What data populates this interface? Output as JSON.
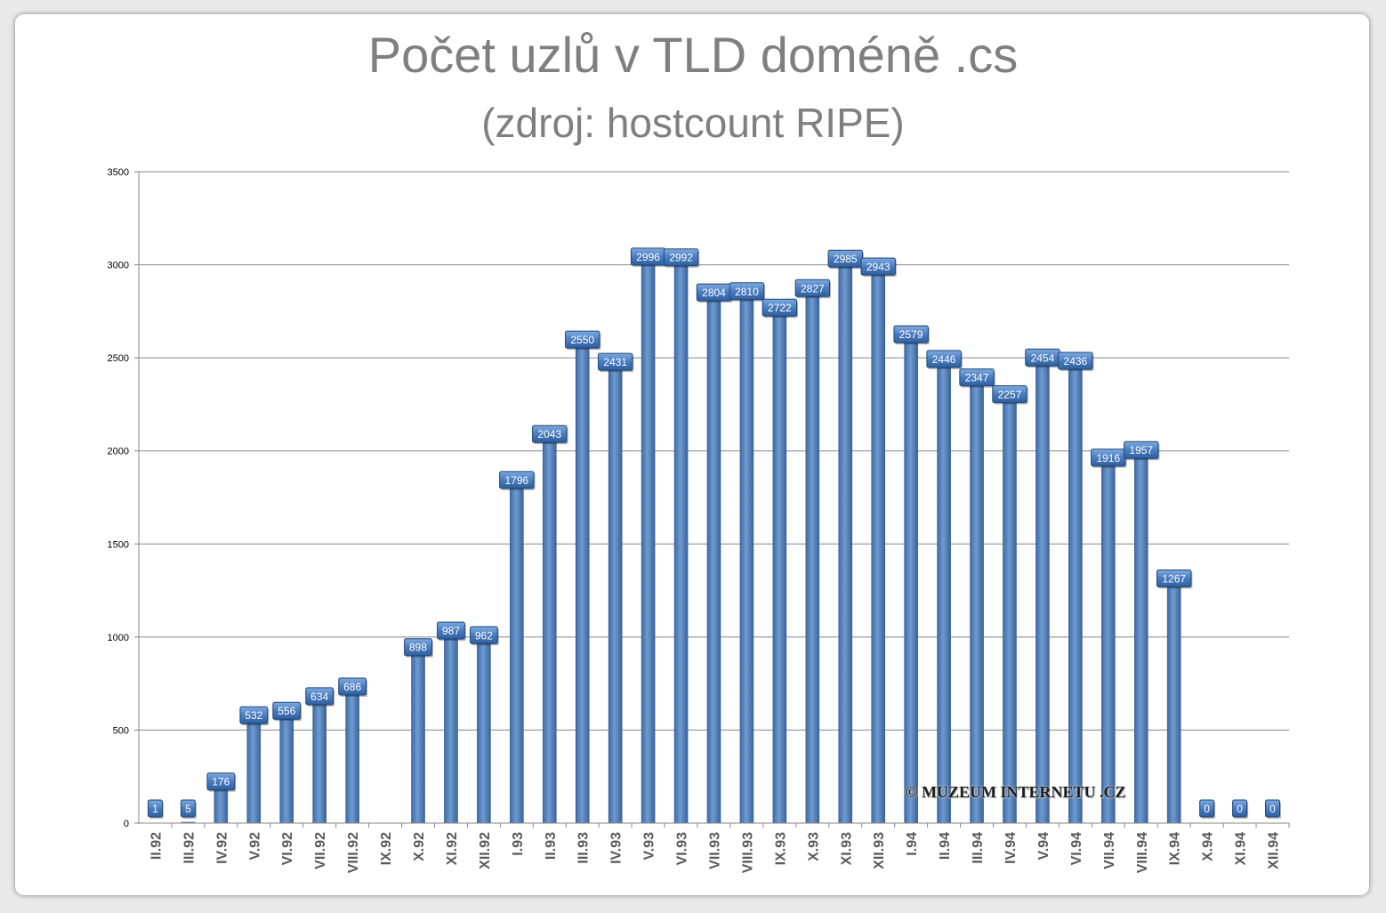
{
  "chart_data": {
    "type": "bar",
    "title": "Počet uzlů v TLD doméně .cs",
    "subtitle": "(zdroj: hostcount RIPE)",
    "xlabel": "",
    "ylabel": "",
    "ylim": [
      0,
      3500
    ],
    "yticks": [
      0,
      500,
      1000,
      1500,
      2000,
      2500,
      3000,
      3500
    ],
    "grid": true,
    "legend": "none",
    "bar_color": "#4f81bd",
    "categories": [
      "II.92",
      "III.92",
      "IV.92",
      "V.92",
      "VI.92",
      "VII.92",
      "VIII.92",
      "IX.92",
      "X.92",
      "XI.92",
      "XII.92",
      "I.93",
      "II.93",
      "III.93",
      "IV.93",
      "V.93",
      "VI.93",
      "VII.93",
      "VIII.93",
      "IX.93",
      "X.93",
      "XI.93",
      "XII.93",
      "I.94",
      "II.94",
      "III.94",
      "IV.94",
      "V.94",
      "VI.94",
      "VII.94",
      "VIII.94",
      "IX.94",
      "X.94",
      "XI.94",
      "XII.94"
    ],
    "values": [
      1,
      5,
      176,
      532,
      556,
      634,
      686,
      null,
      898,
      987,
      962,
      1796,
      2043,
      2550,
      2431,
      2996,
      2992,
      2804,
      2810,
      2722,
      2827,
      2985,
      2943,
      2579,
      2446,
      2347,
      2257,
      2454,
      2436,
      1916,
      1957,
      1267,
      0,
      0,
      0
    ],
    "watermark": "©  MUZEUM INTERNETU .CZ"
  }
}
